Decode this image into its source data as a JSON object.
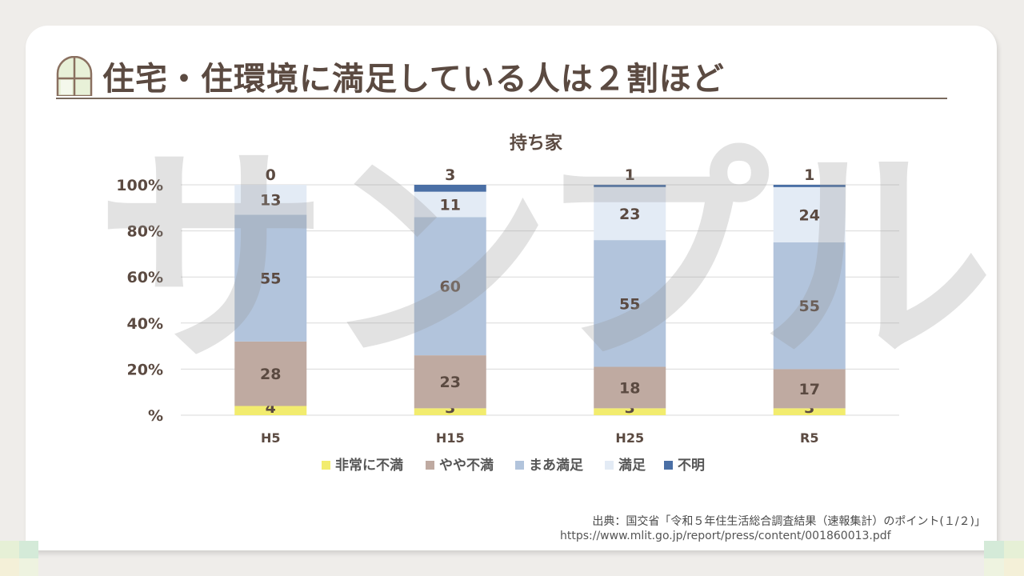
{
  "header": {
    "title": "住宅・住環境に満足している人は２割ほど"
  },
  "watermark": "サンプル",
  "source": {
    "citation": "出典：国交省「令和５年住生活総合調査結果（速報集計）のポイント(１/２)」",
    "url": "https://www.mlit.go.jp/report/press/content/001860013.pdf"
  },
  "colors": {
    "非常に不満": "#f2ec6e",
    "やや不満": "#bfaaa1",
    "まあ満足": "#b2c4dc",
    "満足": "#e3ebf5",
    "不明": "#4a6fa5"
  },
  "chart_data": {
    "type": "bar",
    "stacked": true,
    "title": "持ち家",
    "categories": [
      "H5",
      "H15",
      "H25",
      "R5"
    ],
    "y_ticks": [
      "%",
      "20%",
      "40%",
      "60%",
      "80%",
      "100%"
    ],
    "ylim": [
      0,
      100
    ],
    "legend_position": "bottom",
    "series": [
      {
        "name": "非常に不満",
        "values": [
          4,
          3,
          3,
          3
        ]
      },
      {
        "name": "やや不満",
        "values": [
          28,
          23,
          18,
          17
        ]
      },
      {
        "name": "まあ満足",
        "values": [
          55,
          60,
          55,
          55
        ]
      },
      {
        "name": "満足",
        "values": [
          13,
          11,
          23,
          24
        ]
      },
      {
        "name": "不明",
        "values": [
          0,
          3,
          1,
          1
        ]
      }
    ]
  }
}
